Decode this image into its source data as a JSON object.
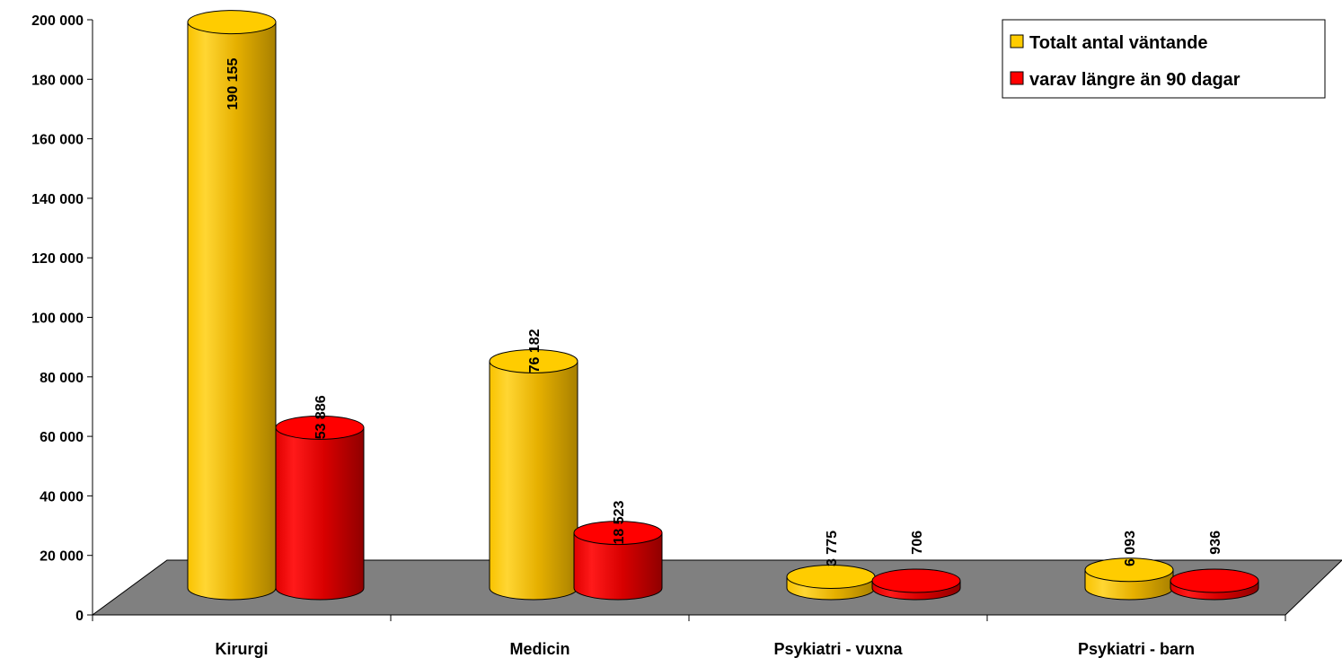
{
  "chart_data": {
    "type": "bar",
    "categories": [
      "Kirurgi",
      "Medicin",
      "Psykiatri - vuxna",
      "Psykiatri - barn"
    ],
    "series": [
      {
        "name": "Totalt antal väntande",
        "values": [
          190155,
          76182,
          3775,
          6093
        ],
        "labels": [
          "190 155",
          "76 182",
          "3 775",
          "6 093"
        ]
      },
      {
        "name": "varav längre än 90 dagar",
        "values": [
          53886,
          18523,
          706,
          936
        ],
        "labels": [
          "53 886",
          "18 523",
          "706",
          "936"
        ]
      }
    ],
    "yticks": [
      "0",
      "20 000",
      "40 000",
      "60 000",
      "80 000",
      "100 000",
      "120 000",
      "140 000",
      "160 000",
      "180 000",
      "200 000"
    ],
    "ylim": [
      0,
      200000
    ],
    "legend_position": "top-right",
    "colors": {
      "series0": "#FFCC00",
      "series1": "#FF0000",
      "floor": "#808080"
    }
  }
}
